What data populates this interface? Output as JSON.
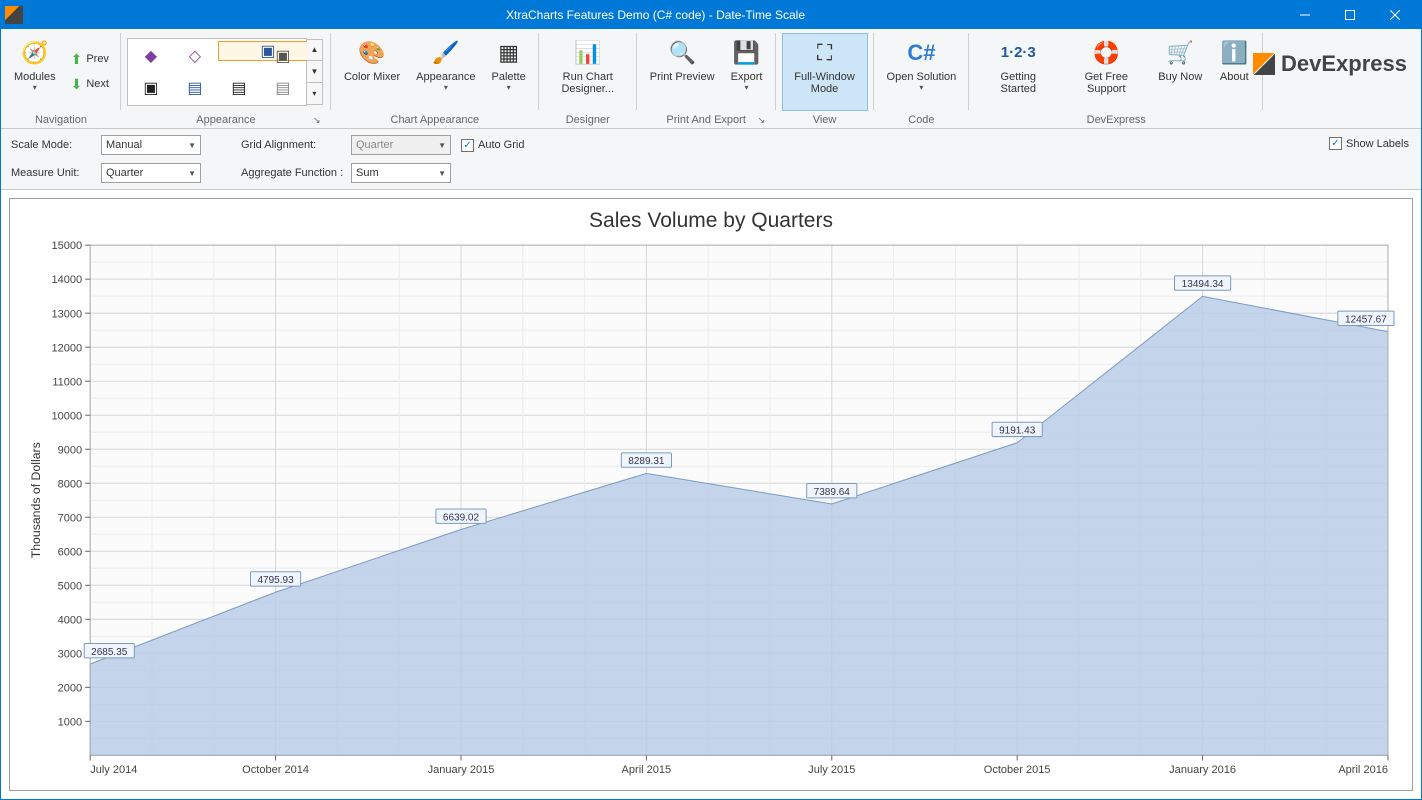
{
  "window": {
    "title": "XtraCharts Features Demo (C# code) - Date-Time Scale"
  },
  "ribbon": {
    "groups": {
      "navigation": "Navigation",
      "appearance": "Appearance",
      "chart_appearance": "Chart Appearance",
      "designer": "Designer",
      "print_export": "Print And Export",
      "view": "View",
      "code": "Code",
      "devexpress": "DevExpress"
    },
    "nav": {
      "modules": "Modules",
      "prev": "Prev",
      "next": "Next"
    },
    "chart_app": {
      "color_mixer": "Color Mixer",
      "appearance": "Appearance",
      "palette": "Palette"
    },
    "designer_btn": "Run Chart Designer...",
    "pe": {
      "preview": "Print Preview",
      "export": "Export"
    },
    "view_btn": "Full-Window Mode",
    "code_btn": "Open Solution",
    "dx": {
      "started": "Getting Started",
      "support": "Get Free Support",
      "buy": "Buy Now",
      "about": "About"
    },
    "logo": "DevExpress"
  },
  "options": {
    "scale_mode_label": "Scale Mode:",
    "scale_mode": "Manual",
    "measure_unit_label": "Measure Unit:",
    "measure_unit": "Quarter",
    "grid_alignment_label": "Grid Alignment:",
    "grid_alignment": "Quarter",
    "aggregate_label": "Aggregate Function :",
    "aggregate": "Sum",
    "auto_grid": "Auto Grid",
    "auto_grid_checked": true,
    "show_labels": "Show Labels",
    "show_labels_checked": true
  },
  "chart": {
    "type": "area",
    "title": "Sales Volume by Quarters",
    "y_axis_label": "Thousands of Dollars",
    "background_color": "#ffffff",
    "plot_background": "#fbfbfb",
    "grid_major_color": "#d7d7d7",
    "grid_minor_color": "#ececec",
    "area_fill": "#b8cde8",
    "area_fill_opacity": 0.85,
    "line_color": "#7c9bc0",
    "line_width": 1,
    "label_box_fill": "#f0f5fc",
    "label_box_stroke": "#7c9bc0",
    "title_fontsize": 21,
    "axis_fontsize": 11,
    "y": {
      "min": 0,
      "max": 15000,
      "major_step": 1000
    },
    "x_categories": [
      "July 2014",
      "October 2014",
      "January 2015",
      "April 2015",
      "July 2015",
      "October 2015",
      "January 2016",
      "April 2016"
    ],
    "values": [
      2685.35,
      4795.93,
      6639.02,
      8289.31,
      7389.64,
      9191.43,
      13494.34,
      12457.67
    ],
    "point_labels": [
      "2685.35",
      "4795.93",
      "6639.02",
      "8289.31",
      "7389.64",
      "9191.43",
      "13494.34",
      "12457.67"
    ]
  }
}
